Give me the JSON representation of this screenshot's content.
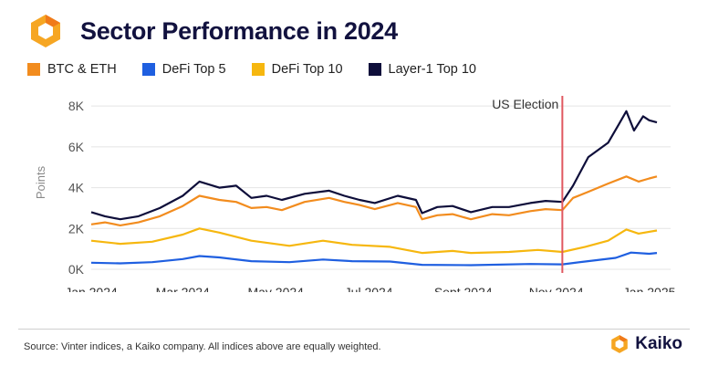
{
  "header": {
    "title": "Sector Performance in 2024"
  },
  "footer": {
    "source": "Source: Vinter indices, a Kaiko company. All indices above are equally weighted.",
    "brand": "Kaiko"
  },
  "colors": {
    "btc_eth": "#f28c1e",
    "defi5": "#1f5fe0",
    "defi10": "#f6b70f",
    "l1": "#0e0e3a",
    "event": "#e05860",
    "grid": "#e4e4e4",
    "logo_gold": "#f6a623",
    "logo_orange": "#f07a1a"
  },
  "chart_data": {
    "type": "line",
    "ylabel": "Points",
    "ylim": [
      0,
      8500
    ],
    "yticks": [
      0,
      2000,
      4000,
      6000,
      8000
    ],
    "ytick_labels": [
      "0K",
      "2K",
      "4K",
      "6K",
      "8K"
    ],
    "xlim": [
      "2024-01-01",
      "2025-01-15"
    ],
    "xticks": [
      "2024-01-01",
      "2024-03-01",
      "2024-05-01",
      "2024-07-01",
      "2024-09-01",
      "2024-11-01",
      "2025-01-01"
    ],
    "xtick_labels": [
      "Jan 2024",
      "Mar 2024",
      "May 2024",
      "Jul 2024",
      "Sept 2024",
      "Nov 2024",
      "Jan 2025"
    ],
    "grid": true,
    "legend_position": "top-left",
    "annotations": [
      {
        "type": "vline",
        "x": "2024-11-05",
        "text": "US Election"
      }
    ],
    "series": [
      {
        "name": "BTC & ETH",
        "color": "#f28c1e",
        "points": [
          [
            "2024-01-01",
            2200
          ],
          [
            "2024-01-10",
            2300
          ],
          [
            "2024-01-20",
            2150
          ],
          [
            "2024-02-01",
            2300
          ],
          [
            "2024-02-15",
            2600
          ],
          [
            "2024-03-01",
            3100
          ],
          [
            "2024-03-12",
            3600
          ],
          [
            "2024-03-25",
            3400
          ],
          [
            "2024-04-05",
            3300
          ],
          [
            "2024-04-15",
            3000
          ],
          [
            "2024-04-25",
            3050
          ],
          [
            "2024-05-05",
            2900
          ],
          [
            "2024-05-20",
            3300
          ],
          [
            "2024-06-05",
            3500
          ],
          [
            "2024-06-15",
            3300
          ],
          [
            "2024-06-25",
            3150
          ],
          [
            "2024-07-05",
            2950
          ],
          [
            "2024-07-20",
            3250
          ],
          [
            "2024-08-01",
            3050
          ],
          [
            "2024-08-05",
            2450
          ],
          [
            "2024-08-15",
            2650
          ],
          [
            "2024-08-25",
            2700
          ],
          [
            "2024-09-06",
            2450
          ],
          [
            "2024-09-20",
            2700
          ],
          [
            "2024-10-01",
            2650
          ],
          [
            "2024-10-15",
            2850
          ],
          [
            "2024-10-25",
            2950
          ],
          [
            "2024-11-05",
            2900
          ],
          [
            "2024-11-12",
            3500
          ],
          [
            "2024-11-22",
            3800
          ],
          [
            "2024-12-05",
            4200
          ],
          [
            "2024-12-17",
            4550
          ],
          [
            "2024-12-25",
            4300
          ],
          [
            "2025-01-01",
            4450
          ],
          [
            "2025-01-06",
            4550
          ]
        ]
      },
      {
        "name": "DeFi Top 5",
        "color": "#1f5fe0",
        "points": [
          [
            "2024-01-01",
            320
          ],
          [
            "2024-01-20",
            290
          ],
          [
            "2024-02-10",
            350
          ],
          [
            "2024-03-01",
            500
          ],
          [
            "2024-03-12",
            650
          ],
          [
            "2024-03-25",
            580
          ],
          [
            "2024-04-15",
            400
          ],
          [
            "2024-05-10",
            350
          ],
          [
            "2024-06-01",
            480
          ],
          [
            "2024-06-20",
            400
          ],
          [
            "2024-07-15",
            380
          ],
          [
            "2024-08-05",
            220
          ],
          [
            "2024-09-06",
            200
          ],
          [
            "2024-10-15",
            260
          ],
          [
            "2024-11-05",
            240
          ],
          [
            "2024-11-20",
            380
          ],
          [
            "2024-12-10",
            560
          ],
          [
            "2024-12-20",
            820
          ],
          [
            "2025-01-01",
            760
          ],
          [
            "2025-01-06",
            800
          ]
        ]
      },
      {
        "name": "DeFi Top 10",
        "color": "#f6b70f",
        "points": [
          [
            "2024-01-01",
            1400
          ],
          [
            "2024-01-20",
            1250
          ],
          [
            "2024-02-10",
            1350
          ],
          [
            "2024-03-01",
            1700
          ],
          [
            "2024-03-12",
            2000
          ],
          [
            "2024-03-25",
            1800
          ],
          [
            "2024-04-15",
            1400
          ],
          [
            "2024-05-10",
            1150
          ],
          [
            "2024-06-01",
            1400
          ],
          [
            "2024-06-20",
            1200
          ],
          [
            "2024-07-15",
            1100
          ],
          [
            "2024-08-05",
            800
          ],
          [
            "2024-08-25",
            900
          ],
          [
            "2024-09-06",
            800
          ],
          [
            "2024-10-01",
            850
          ],
          [
            "2024-10-20",
            950
          ],
          [
            "2024-11-05",
            850
          ],
          [
            "2024-11-20",
            1100
          ],
          [
            "2024-12-05",
            1400
          ],
          [
            "2024-12-17",
            1950
          ],
          [
            "2024-12-25",
            1750
          ],
          [
            "2025-01-06",
            1900
          ]
        ]
      },
      {
        "name": "Layer-1 Top 10",
        "color": "#0e0e3a",
        "points": [
          [
            "2024-01-01",
            2800
          ],
          [
            "2024-01-10",
            2600
          ],
          [
            "2024-01-20",
            2450
          ],
          [
            "2024-02-01",
            2600
          ],
          [
            "2024-02-15",
            3000
          ],
          [
            "2024-03-01",
            3600
          ],
          [
            "2024-03-12",
            4300
          ],
          [
            "2024-03-25",
            4000
          ],
          [
            "2024-04-05",
            4100
          ],
          [
            "2024-04-15",
            3500
          ],
          [
            "2024-04-25",
            3600
          ],
          [
            "2024-05-05",
            3400
          ],
          [
            "2024-05-20",
            3700
          ],
          [
            "2024-06-05",
            3850
          ],
          [
            "2024-06-15",
            3600
          ],
          [
            "2024-06-25",
            3400
          ],
          [
            "2024-07-05",
            3250
          ],
          [
            "2024-07-20",
            3600
          ],
          [
            "2024-08-01",
            3400
          ],
          [
            "2024-08-05",
            2750
          ],
          [
            "2024-08-15",
            3050
          ],
          [
            "2024-08-25",
            3100
          ],
          [
            "2024-09-06",
            2800
          ],
          [
            "2024-09-20",
            3050
          ],
          [
            "2024-10-01",
            3050
          ],
          [
            "2024-10-15",
            3250
          ],
          [
            "2024-10-25",
            3350
          ],
          [
            "2024-11-05",
            3300
          ],
          [
            "2024-11-12",
            4100
          ],
          [
            "2024-11-22",
            5500
          ],
          [
            "2024-12-05",
            6200
          ],
          [
            "2024-12-12",
            7100
          ],
          [
            "2024-12-17",
            7750
          ],
          [
            "2024-12-22",
            6800
          ],
          [
            "2024-12-28",
            7500
          ],
          [
            "2025-01-01",
            7300
          ],
          [
            "2025-01-06",
            7200
          ]
        ]
      }
    ]
  }
}
